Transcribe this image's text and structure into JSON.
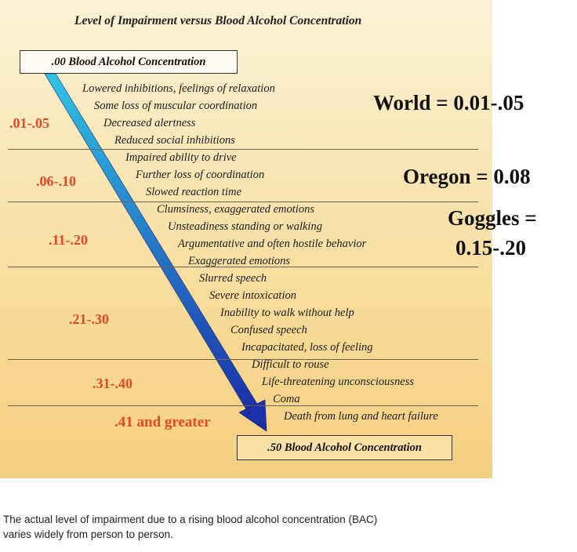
{
  "title": "Level of Impairment versus Blood Alcohol Concentration",
  "start_label": ".00 Blood Alcohol Concentration",
  "end_label": ".50 Blood Alcohol Concentration",
  "levels": [
    {
      "range": ".01-.05",
      "effects": [
        "Lowered inhibitions, feelings of relaxation",
        "Some loss of muscular coordination",
        "Decreased alertness",
        "Reduced social inhibitions"
      ]
    },
    {
      "range": ".06-.10",
      "effects": [
        "Impaired ability to drive",
        "Further loss of coordination",
        "Slowed reaction time"
      ]
    },
    {
      "range": ".11-.20",
      "effects": [
        "Clumsiness, exaggerated emotions",
        "Unsteadiness standing or walking",
        "Argumentative and often hostile behavior",
        "Exaggerated emotions"
      ]
    },
    {
      "range": ".21-.30",
      "effects": [
        "Slurred speech",
        "Severe intoxication",
        "Inability to walk without help",
        "Confused speech",
        "Incapacitated, loss of feeling"
      ]
    },
    {
      "range": ".31-.40",
      "effects": [
        "Difficult to rouse",
        "Life-threatening unconsciousness",
        "Coma"
      ]
    },
    {
      "range": ".41 and greater",
      "effects": [
        "Death from lung and heart failure"
      ]
    }
  ],
  "notes": {
    "world": "World = 0.01-.05",
    "oregon": "Oregon = 0.08",
    "goggles_line1": "Goggles =",
    "goggles_line2": "0.15-.20"
  },
  "caption_line1": "The actual level of impairment due to a rising blood alcohol concentration (BAC)",
  "caption_line2": "varies widely from person to person.",
  "colors": {
    "range_text": "#e24826",
    "arrow_top": "#2fc4e6",
    "arrow_bottom": "#1b2fa8"
  }
}
